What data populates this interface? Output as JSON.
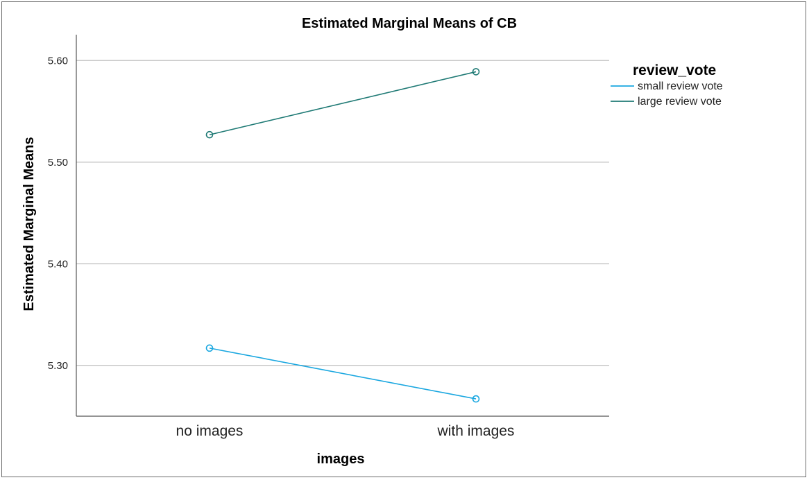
{
  "chart_data": {
    "type": "line",
    "title": "Estimated Marginal Means of CB",
    "xlabel": "images",
    "ylabel": "Estimated Marginal Means",
    "categories": [
      "no images",
      "with images"
    ],
    "ylim": [
      5.25,
      5.62
    ],
    "yticks": [
      5.3,
      5.4,
      5.5,
      5.6
    ],
    "ytick_labels": [
      "5.30",
      "5.40",
      "5.50",
      "5.60"
    ],
    "grid": true,
    "legend_title": "review_vote",
    "legend_position": "right",
    "series": [
      {
        "name": "small review vote",
        "values": [
          5.317,
          5.267
        ],
        "color": "#1aa7e0"
      },
      {
        "name": "large review vote",
        "values": [
          5.527,
          5.589
        ],
        "color": "#1f7a75"
      }
    ]
  }
}
